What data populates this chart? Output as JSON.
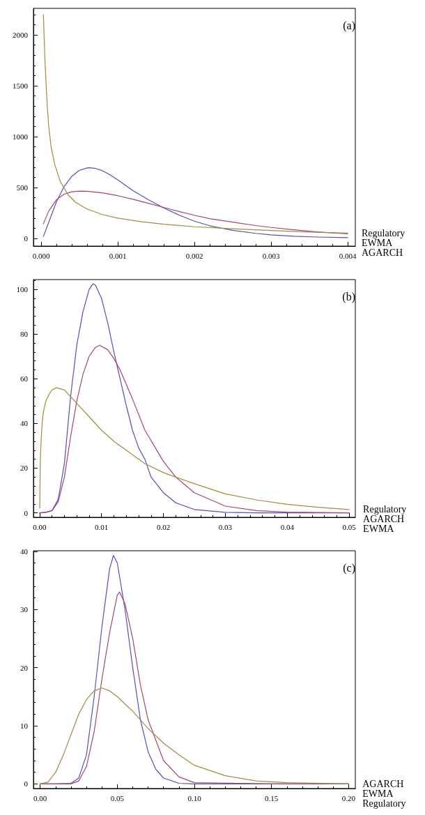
{
  "chart_data": [
    {
      "type": "line",
      "annotations": [
        "(a)"
      ],
      "xlim": [
        -0.0001,
        0.0041
      ],
      "xticks": [
        {
          "value": 0,
          "label": "0.000"
        },
        0.001,
        0.002,
        0.003,
        0.004
      ],
      "ylim": [
        -75,
        2260
      ],
      "yticks": [
        0,
        500,
        1000,
        1500,
        2000
      ],
      "grid": false,
      "marker": "none",
      "line_style": "solid",
      "series": [
        {
          "name": "AGARCH",
          "color": "#5050c0",
          "x": [
            3e-05,
            0.0001,
            0.0002,
            0.0003,
            0.0004,
            0.0005,
            0.0006,
            0.00063,
            0.0007,
            0.0008,
            0.0009,
            0.001,
            0.0012,
            0.0014,
            0.0016,
            0.0018,
            0.002,
            0.0022,
            0.0025,
            0.0028,
            0.003,
            0.0033,
            0.0036,
            0.004
          ],
          "values": [
            20,
            160,
            360,
            510,
            610,
            670,
            693,
            695,
            690,
            665,
            625,
            575,
            470,
            380,
            300,
            230,
            170,
            125,
            80,
            50,
            36,
            22,
            14,
            8
          ]
        },
        {
          "name": "EWMA",
          "color": "#a8417a",
          "x": [
            3e-05,
            0.0001,
            0.0002,
            0.0003,
            0.0004,
            0.0005,
            0.0006,
            0.0008,
            0.001,
            0.0012,
            0.0014,
            0.0016,
            0.0018,
            0.002,
            0.0022,
            0.0025,
            0.0028,
            0.003,
            0.0033,
            0.0036,
            0.004
          ],
          "values": [
            145,
            270,
            380,
            435,
            458,
            465,
            463,
            448,
            420,
            385,
            345,
            305,
            265,
            228,
            195,
            160,
            127,
            108,
            85,
            65,
            45
          ]
        },
        {
          "name": "Regulatory",
          "color": "#a08c3a",
          "x": [
            3e-05,
            5e-05,
            8e-05,
            0.0001,
            0.00013,
            0.00018,
            0.00025,
            0.00035,
            0.00045,
            0.0006,
            0.0008,
            0.001,
            0.0013,
            0.0016,
            0.002,
            0.0025,
            0.003,
            0.0035,
            0.004
          ],
          "values": [
            2200,
            1750,
            1300,
            1100,
            900,
            720,
            560,
            430,
            355,
            290,
            235,
            200,
            165,
            140,
            115,
            95,
            78,
            63,
            52
          ]
        }
      ]
    },
    {
      "type": "line",
      "annotations": [
        "(b)"
      ],
      "xlim": [
        -0.001,
        0.051
      ],
      "xticks": [
        {
          "value": 0,
          "label": "0.00"
        },
        0.01,
        0.02,
        0.03,
        0.04,
        0.05
      ],
      "ylim": [
        -2,
        104.4
      ],
      "yticks": [
        0,
        20,
        40,
        60,
        80,
        100
      ],
      "grid": false,
      "marker": "none",
      "line_style": "solid",
      "series": [
        {
          "name": "AGARCH",
          "color": "#5050c0",
          "x": [
            0,
            0.001,
            0.002,
            0.003,
            0.004,
            0.005,
            0.006,
            0.007,
            0.008,
            0.0086,
            0.009,
            0.01,
            0.011,
            0.012,
            0.013,
            0.014,
            0.015,
            0.016,
            0.017,
            0.018,
            0.02,
            0.022,
            0.025,
            0.03,
            0.035,
            0.04,
            0.05
          ],
          "values": [
            0,
            0.2,
            1,
            6,
            22,
            52,
            75,
            90,
            100,
            102.5,
            102,
            96,
            85,
            72,
            60,
            48,
            37,
            29,
            24,
            16,
            9,
            4.5,
            1.5,
            0.2,
            0,
            0,
            0
          ]
        },
        {
          "name": "EWMA",
          "color": "#a8417a",
          "x": [
            0,
            0.001,
            0.002,
            0.003,
            0.004,
            0.005,
            0.006,
            0.007,
            0.008,
            0.009,
            0.0097,
            0.011,
            0.012,
            0.013,
            0.015,
            0.017,
            0.02,
            0.022,
            0.025,
            0.03,
            0.035,
            0.04,
            0.05
          ],
          "values": [
            0,
            0.2,
            1,
            5,
            16,
            34,
            50,
            62,
            70,
            74,
            75,
            73,
            69,
            64,
            51,
            37,
            23,
            16,
            9,
            3,
            1,
            0.3,
            0
          ]
        },
        {
          "name": "Regulatory",
          "color": "#a08c3a",
          "x": [
            2e-05,
            0.0001,
            0.0002,
            0.0004,
            0.0006,
            0.001,
            0.0015,
            0.002,
            0.0027,
            0.004,
            0.005,
            0.006,
            0.008,
            0.01,
            0.012,
            0.015,
            0.017,
            0.02,
            0.022,
            0.025,
            0.03,
            0.035,
            0.04,
            0.045,
            0.05
          ],
          "values": [
            2,
            22,
            30,
            40,
            45,
            50,
            53,
            55,
            56,
            55,
            52,
            49,
            43,
            37,
            32,
            26,
            22,
            18,
            16,
            13,
            8.5,
            5.8,
            3.8,
            2.5,
            1.5
          ]
        }
      ]
    },
    {
      "type": "line",
      "annotations": [
        "(c)"
      ],
      "xlim": [
        -0.0044,
        0.2044
      ],
      "xticks": [
        {
          "value": 0,
          "label": "0.00"
        },
        0.05,
        {
          "value": 0.1,
          "label": "0.10"
        },
        0.15,
        {
          "value": 0.2,
          "label": "0.20"
        }
      ],
      "ylim": [
        -0.8,
        40.1
      ],
      "yticks": [
        0,
        10,
        20,
        30,
        40
      ],
      "grid": false,
      "marker": "none",
      "line_style": "solid",
      "series": [
        {
          "name": "AGARCH",
          "color": "#5050c0",
          "x": [
            0,
            0.01,
            0.02,
            0.025,
            0.03,
            0.035,
            0.04,
            0.045,
            0.0475,
            0.05,
            0.055,
            0.06,
            0.065,
            0.07,
            0.075,
            0.08,
            0.09,
            0.1,
            0.15,
            0.2
          ],
          "values": [
            0,
            0,
            0.1,
            1,
            5,
            15,
            27,
            37,
            39.3,
            38,
            30,
            20,
            11,
            5.5,
            2.5,
            1,
            0.1,
            0,
            0,
            0
          ]
        },
        {
          "name": "EWMA",
          "color": "#a8417a",
          "x": [
            0,
            0.01,
            0.02,
            0.025,
            0.03,
            0.035,
            0.04,
            0.045,
            0.05,
            0.0515,
            0.055,
            0.06,
            0.065,
            0.07,
            0.075,
            0.08,
            0.09,
            0.1,
            0.15,
            0.2
          ],
          "values": [
            0,
            0,
            0,
            0.5,
            3,
            9,
            18,
            26,
            32.5,
            33,
            31,
            25,
            17,
            11,
            7.5,
            4,
            1.2,
            0.2,
            0,
            0
          ]
        },
        {
          "name": "Regulatory",
          "color": "#a08c3a",
          "x": [
            0,
            0.005,
            0.01,
            0.015,
            0.02,
            0.025,
            0.03,
            0.035,
            0.04,
            0.045,
            0.05,
            0.06,
            0.07,
            0.08,
            0.09,
            0.1,
            0.12,
            0.14,
            0.16,
            0.2
          ],
          "values": [
            0,
            0.3,
            2,
            5,
            8.5,
            12,
            14.5,
            16,
            16.5,
            16,
            15,
            12.5,
            9.5,
            7,
            5,
            3.2,
            1.4,
            0.5,
            0.2,
            0
          ]
        }
      ]
    }
  ]
}
